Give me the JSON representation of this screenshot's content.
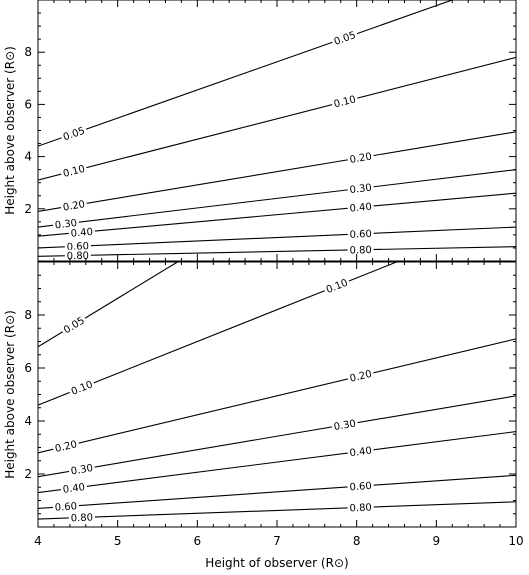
{
  "chart_data": [
    {
      "type": "contour",
      "panel": "top",
      "xlim": [
        4,
        10
      ],
      "ylim": [
        0,
        10
      ],
      "yticks": [
        2,
        4,
        6,
        8
      ],
      "ylabel": "Height above observer (R⊙)",
      "xlabel": "",
      "contours": [
        {
          "label": "0.05",
          "points": [
            [
              4.0,
              4.4
            ],
            [
              9.2,
              10.0
            ]
          ],
          "label_x": 4.45
        },
        {
          "label": "0.05",
          "points": [
            [
              4.0,
              4.4
            ],
            [
              9.2,
              10.0
            ]
          ],
          "label_x": 7.85
        },
        {
          "label": "0.10",
          "points": [
            [
              4.0,
              3.1
            ],
            [
              10.0,
              7.8
            ]
          ],
          "label_x": 4.45
        },
        {
          "label": "0.10",
          "points": [
            [
              4.0,
              3.1
            ],
            [
              10.0,
              7.8
            ]
          ],
          "label_x": 7.85
        },
        {
          "label": "0.20",
          "points": [
            [
              4.0,
              1.9
            ],
            [
              10.0,
              4.95
            ]
          ],
          "label_x": 4.45
        },
        {
          "label": "0.20",
          "points": [
            [
              4.0,
              1.9
            ],
            [
              10.0,
              4.95
            ]
          ],
          "label_x": 8.05
        },
        {
          "label": "0.30",
          "points": [
            [
              4.0,
              1.3
            ],
            [
              10.0,
              3.5
            ]
          ],
          "label_x": 4.35
        },
        {
          "label": "0.30",
          "points": [
            [
              4.0,
              1.3
            ],
            [
              10.0,
              3.5
            ]
          ],
          "label_x": 8.05
        },
        {
          "label": "0.40",
          "points": [
            [
              4.0,
              0.95
            ],
            [
              10.0,
              2.6
            ]
          ],
          "label_x": 4.55
        },
        {
          "label": "0.40",
          "points": [
            [
              4.0,
              0.95
            ],
            [
              10.0,
              2.6
            ]
          ],
          "label_x": 8.05
        },
        {
          "label": "0.60",
          "points": [
            [
              4.0,
              0.5
            ],
            [
              10.0,
              1.3
            ]
          ],
          "label_x": 4.5
        },
        {
          "label": "0.60",
          "points": [
            [
              4.0,
              0.5
            ],
            [
              10.0,
              1.3
            ]
          ],
          "label_x": 8.05
        },
        {
          "label": "0.80",
          "points": [
            [
              4.0,
              0.18
            ],
            [
              10.0,
              0.55
            ]
          ],
          "label_x": 4.5
        },
        {
          "label": "0.80",
          "points": [
            [
              4.0,
              0.18
            ],
            [
              10.0,
              0.55
            ]
          ],
          "label_x": 8.05
        }
      ]
    },
    {
      "type": "contour",
      "panel": "bottom",
      "xlim": [
        4,
        10
      ],
      "ylim": [
        0,
        10
      ],
      "xticks": [
        4,
        5,
        6,
        7,
        8,
        9,
        10
      ],
      "yticks": [
        2,
        4,
        6,
        8
      ],
      "xlabel": "Height of observer (R⊙)",
      "ylabel": "Height above observer (R⊙)",
      "contours": [
        {
          "label": "0.05",
          "points": [
            [
              4.0,
              6.8
            ],
            [
              5.75,
              10.0
            ]
          ],
          "label_x": 4.45
        },
        {
          "label": "0.10",
          "points": [
            [
              4.0,
              4.6
            ],
            [
              8.5,
              10.0
            ]
          ],
          "label_x": 4.55
        },
        {
          "label": "0.10",
          "points": [
            [
              4.0,
              4.6
            ],
            [
              8.5,
              10.0
            ]
          ],
          "label_x": 7.75
        },
        {
          "label": "0.20",
          "points": [
            [
              4.0,
              2.8
            ],
            [
              10.0,
              7.1
            ]
          ],
          "label_x": 4.35
        },
        {
          "label": "0.20",
          "points": [
            [
              4.0,
              2.8
            ],
            [
              10.0,
              7.1
            ]
          ],
          "label_x": 8.05
        },
        {
          "label": "0.30",
          "points": [
            [
              4.0,
              1.9
            ],
            [
              10.0,
              4.95
            ]
          ],
          "label_x": 4.55
        },
        {
          "label": "0.30",
          "points": [
            [
              4.0,
              1.9
            ],
            [
              10.0,
              4.95
            ]
          ],
          "label_x": 7.85
        },
        {
          "label": "0.40",
          "points": [
            [
              4.0,
              1.3
            ],
            [
              10.0,
              3.6
            ]
          ],
          "label_x": 4.45
        },
        {
          "label": "0.40",
          "points": [
            [
              4.0,
              1.3
            ],
            [
              10.0,
              3.6
            ]
          ],
          "label_x": 8.05
        },
        {
          "label": "0.60",
          "points": [
            [
              4.0,
              0.7
            ],
            [
              10.0,
              1.95
            ]
          ],
          "label_x": 4.35
        },
        {
          "label": "0.60",
          "points": [
            [
              4.0,
              0.7
            ],
            [
              10.0,
              1.95
            ]
          ],
          "label_x": 8.05
        },
        {
          "label": "0.80",
          "points": [
            [
              4.0,
              0.3
            ],
            [
              10.0,
              0.95
            ]
          ],
          "label_x": 4.55
        },
        {
          "label": "0.80",
          "points": [
            [
              4.0,
              0.3
            ],
            [
              10.0,
              0.95
            ]
          ],
          "label_x": 8.05
        }
      ]
    }
  ]
}
